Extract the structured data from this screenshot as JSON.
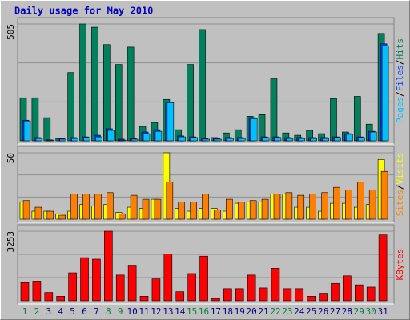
{
  "chart_data": [
    {
      "type": "bar",
      "title": "Daily usage for May 2010",
      "ylim": [
        0,
        505
      ],
      "yticks": [
        505
      ],
      "legend_separator": "/",
      "series": [
        {
          "name": "Hits",
          "color": "#00805c",
          "values": [
            186,
            186,
            100,
            10,
            295,
            505,
            491,
            416,
            330,
            405,
            62,
            79,
            179,
            48,
            330,
            481,
            14,
            34,
            48,
            106,
            113,
            268,
            34,
            24,
            45,
            31,
            182,
            38,
            192,
            72,
            464
          ]
        },
        {
          "name": "Files",
          "color": "#0040ff",
          "values": [
            89,
            14,
            4,
            10,
            14,
            17,
            24,
            52,
            7,
            10,
            38,
            48,
            168,
            21,
            17,
            10,
            10,
            14,
            14,
            100,
            17,
            17,
            14,
            14,
            14,
            14,
            17,
            31,
            17,
            41,
            419
          ]
        },
        {
          "name": "Pages",
          "color": "#00c0ff",
          "values": [
            86,
            10,
            3,
            7,
            10,
            14,
            17,
            45,
            3,
            7,
            31,
            41,
            165,
            17,
            14,
            7,
            7,
            10,
            10,
            96,
            14,
            14,
            10,
            10,
            10,
            10,
            14,
            28,
            14,
            38,
            410
          ]
        }
      ]
    },
    {
      "type": "bar",
      "ylim": [
        0,
        50
      ],
      "yticks": [
        50
      ],
      "legend_separator": "/",
      "series": [
        {
          "name": "Visits",
          "color": "#ffff00",
          "values": [
            13,
            6,
            6,
            4,
            6,
            11,
            10,
            11,
            5,
            9,
            8,
            15,
            50,
            8,
            6,
            8,
            8,
            6,
            12,
            13,
            13,
            19,
            19,
            9,
            9,
            6,
            12,
            12,
            9,
            11,
            45
          ]
        },
        {
          "name": "Sites",
          "color": "#ff8000",
          "values": [
            14,
            9,
            6,
            3,
            19,
            19,
            19,
            20,
            4,
            18,
            15,
            15,
            28,
            13,
            13,
            19,
            7,
            15,
            13,
            14,
            15,
            19,
            20,
            18,
            19,
            20,
            24,
            22,
            28,
            22,
            36
          ]
        }
      ]
    },
    {
      "type": "bar",
      "ylim": [
        0,
        3253
      ],
      "yticks": [
        3253
      ],
      "categories": [
        "1",
        "2",
        "3",
        "4",
        "5",
        "6",
        "7",
        "8",
        "9",
        "10",
        "11",
        "12",
        "13",
        "14",
        "15",
        "16",
        "17",
        "18",
        "19",
        "20",
        "21",
        "22",
        "23",
        "24",
        "25",
        "26",
        "27",
        "28",
        "29",
        "30",
        "31"
      ],
      "label_colors": [
        "#008040",
        "#008040",
        "#000080",
        "#000080",
        "#000080",
        "#000080",
        "#000080",
        "#008040",
        "#008040",
        "#000080",
        "#000080",
        "#000080",
        "#000080",
        "#000080",
        "#008040",
        "#008040",
        "#000080",
        "#000080",
        "#000080",
        "#000080",
        "#000080",
        "#008040",
        "#008040",
        "#000080",
        "#000080",
        "#000080",
        "#000080",
        "#000080",
        "#008040",
        "#008040",
        "#000080"
      ],
      "series": [
        {
          "name": "KBytes",
          "color": "#ff0000",
          "values": [
            849,
            919,
            389,
            212,
            1308,
            2015,
            1945,
            3253,
            1202,
            1662,
            212,
            1025,
            2192,
            424,
            1273,
            2086,
            106,
            566,
            566,
            1202,
            601,
            1520,
            566,
            566,
            212,
            354,
            813,
            1167,
            743,
            637,
            3077
          ]
        }
      ]
    }
  ]
}
